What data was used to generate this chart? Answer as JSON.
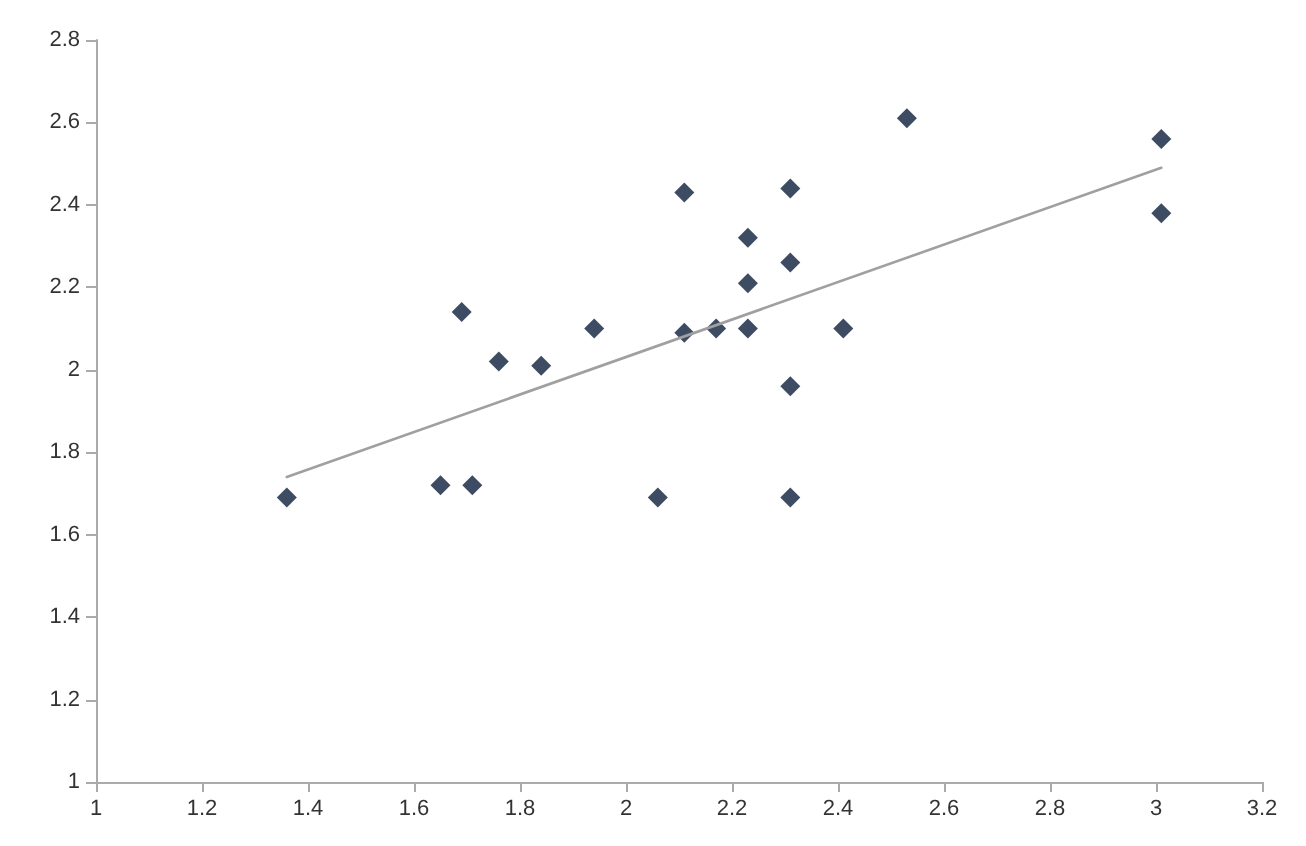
{
  "chart_data": {
    "type": "scatter",
    "xlim": [
      1,
      3.2
    ],
    "ylim": [
      1,
      2.8
    ],
    "xticks": [
      1,
      1.2,
      1.4,
      1.6,
      1.8,
      2,
      2.2,
      2.4,
      2.6,
      2.8,
      3,
      3.2
    ],
    "yticks": [
      1,
      1.2,
      1.4,
      1.6,
      1.8,
      2,
      2.2,
      2.4,
      2.6,
      2.8
    ],
    "grid": false,
    "marker": "diamond",
    "series": [
      {
        "color": "#0d1f3c",
        "x": [
          1.36,
          1.65,
          1.71,
          1.69,
          1.76,
          1.84,
          1.94,
          2.06,
          2.11,
          2.11,
          2.17,
          2.23,
          2.23,
          2.23,
          2.31,
          2.31,
          2.31,
          2.31,
          2.41,
          2.53,
          3.01,
          3.01
        ],
        "values": [
          1.69,
          1.72,
          1.72,
          2.14,
          2.02,
          2.01,
          2.1,
          1.69,
          2.43,
          2.09,
          2.1,
          2.32,
          2.21,
          2.1,
          2.44,
          2.26,
          1.96,
          1.69,
          2.1,
          2.61,
          2.56,
          2.38
        ]
      },
      {
        "type": "line",
        "color": "#a0a0a0",
        "marker": "none",
        "line_style": "solid",
        "x": [
          1.36,
          3.01
        ],
        "values": [
          1.74,
          2.49
        ]
      }
    ]
  }
}
